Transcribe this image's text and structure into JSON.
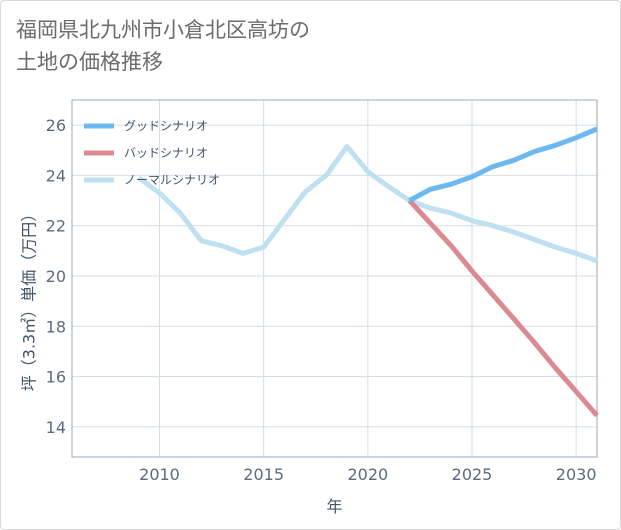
{
  "title": {
    "line1": "福岡県北九州市小倉北区高坊の",
    "line2": "土地の価格推移"
  },
  "colors": {
    "good": "#6cb8f0",
    "bad": "#db8a92",
    "normal": "#bfe0f0",
    "grid": "#d5dde6",
    "plot_border": "#98a8b8"
  },
  "chart_data": {
    "type": "line",
    "xlabel": "年",
    "ylabel": "坪（3.3㎡）単価（万円）",
    "xlim": [
      2005.8,
      2031
    ],
    "ylim": [
      12.8,
      27
    ],
    "xticks": [
      2010,
      2015,
      2020,
      2025,
      2030
    ],
    "yticks": [
      14,
      16,
      18,
      20,
      22,
      24,
      26
    ],
    "grid": true,
    "legend_position": "top-left",
    "series": [
      {
        "key": "good",
        "name": "グッドシナリオ",
        "x": [
          2022,
          2023,
          2024,
          2025,
          2026,
          2027,
          2028,
          2029,
          2030,
          2031
        ],
        "y": [
          23.0,
          23.45,
          23.65,
          23.95,
          24.35,
          24.6,
          24.95,
          25.2,
          25.5,
          25.85
        ]
      },
      {
        "key": "bad",
        "name": "バッドシナリオ",
        "x": [
          2022,
          2023,
          2024,
          2025,
          2026,
          2027,
          2028,
          2029,
          2030,
          2031
        ],
        "y": [
          23.0,
          22.1,
          21.2,
          20.2,
          19.25,
          18.3,
          17.35,
          16.35,
          15.4,
          14.45
        ]
      },
      {
        "key": "normal",
        "name": "ノーマルシナリオ",
        "x": [
          2009,
          2010,
          2011,
          2012,
          2013,
          2014,
          2015,
          2016,
          2017,
          2018,
          2019,
          2020,
          2021,
          2022,
          2023,
          2024,
          2025,
          2026,
          2027,
          2028,
          2029,
          2030,
          2031
        ],
        "y": [
          23.9,
          23.3,
          22.5,
          21.4,
          21.2,
          20.9,
          21.15,
          22.25,
          23.35,
          24.0,
          25.15,
          24.15,
          23.55,
          23.0,
          22.7,
          22.5,
          22.2,
          22.0,
          21.75,
          21.45,
          21.15,
          20.9,
          20.6
        ]
      }
    ]
  }
}
